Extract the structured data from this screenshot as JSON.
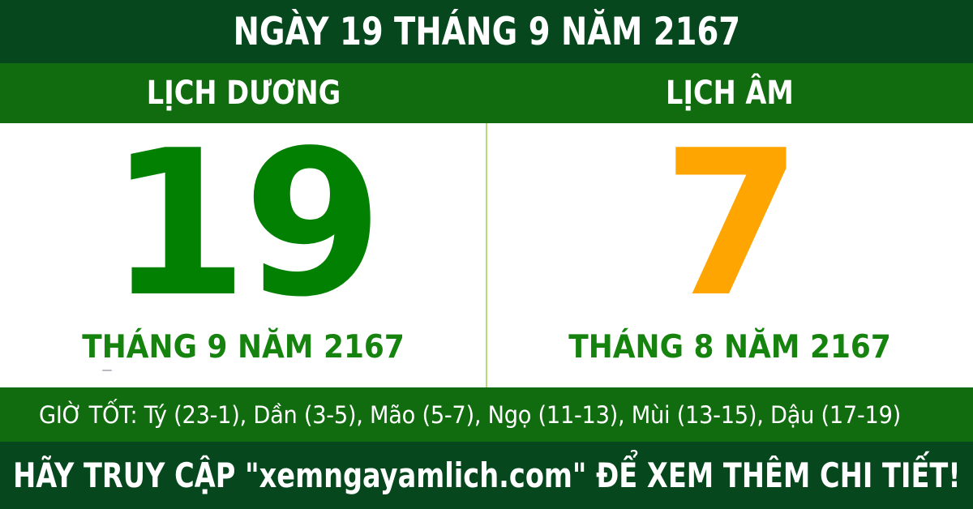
{
  "header": {
    "title": "NGÀY 19 THÁNG 9 NĂM 2167"
  },
  "columns": {
    "solar": {
      "header": "LỊCH DƯƠNG",
      "day": "19",
      "month_label": "THÁNG 9 NĂM 2167"
    },
    "lunar": {
      "header": "LỊCH ÂM",
      "day": "7",
      "month_label": "THÁNG 8 NĂM 2167"
    }
  },
  "good_hours": {
    "text": "GIỜ TỐT: Tý (23-1), Dần (3-5), Mão (5-7), Ngọ (11-13), Mùi (13-15), Dậu (17-19)"
  },
  "footer": {
    "text": "HÃY TRUY CẬP \"xemngayamlich.com\" ĐỂ XEM THÊM CHI TIẾT!"
  },
  "colors": {
    "dark_green": "#06471e",
    "bright_green": "#116b0f",
    "solar_day_green": "#028002",
    "lunar_day_orange": "#ffa502",
    "month_text_green": "#15830e",
    "divider_light_green": "#b5dc79",
    "text_white": "#ffffff",
    "background_white": "#ffffff"
  }
}
